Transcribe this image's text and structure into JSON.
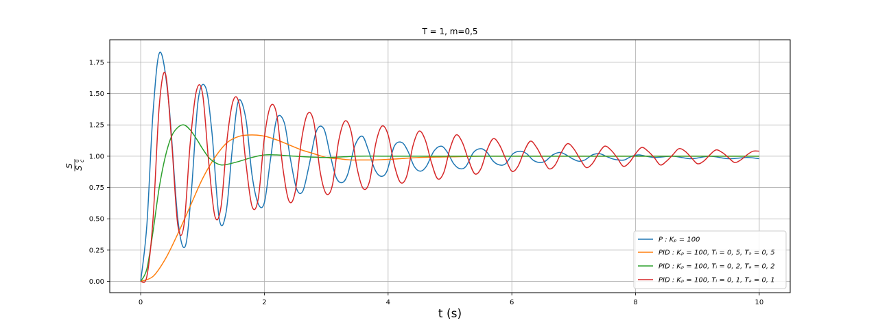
{
  "chart_data": {
    "type": "line",
    "title": "T = 1, m=0,5",
    "xlabel": "t (s)",
    "ylabel_num": "S",
    "ylabel_den": "S",
    "ylabel_den_sub": "c",
    "ylabel_den_sup": "0",
    "xlim": [
      -0.5,
      10.5
    ],
    "ylim": [
      -0.09,
      1.93
    ],
    "xticks": [
      0,
      2,
      4,
      6,
      8,
      10
    ],
    "xtick_labels": [
      "0",
      "2",
      "4",
      "6",
      "8",
      "10"
    ],
    "yticks": [
      0.0,
      0.25,
      0.5,
      0.75,
      1.0,
      1.25,
      1.5,
      1.75
    ],
    "ytick_labels": [
      "0.00",
      "0.25",
      "0.50",
      "0.75",
      "1.00",
      "1.25",
      "1.50",
      "1.75"
    ],
    "grid": true,
    "legend_position": "bottom-right",
    "series": [
      {
        "name": "P: K_p = 100",
        "legend": "P : Kₚ = 100",
        "color": "#1f77b4",
        "x": [
          0,
          0.1,
          0.2,
          0.31,
          0.45,
          0.6,
          0.72,
          0.82,
          0.93,
          1.05,
          1.15,
          1.27,
          1.38,
          1.48,
          1.58,
          1.7,
          1.8,
          1.9,
          2.0,
          2.1,
          2.2,
          2.32,
          2.42,
          2.52,
          2.62,
          2.72,
          2.84,
          2.96,
          3.06,
          3.16,
          3.26,
          3.35,
          3.46,
          3.58,
          3.68,
          3.78,
          3.88,
          3.98,
          4.1,
          4.22,
          4.32,
          4.42,
          4.52,
          4.62,
          4.74,
          4.86,
          4.96,
          5.06,
          5.16,
          5.26,
          5.38,
          5.5,
          5.6,
          5.7,
          5.8,
          5.9,
          6.02,
          6.14,
          6.24,
          6.34,
          6.44,
          6.54,
          6.66,
          6.78,
          6.88,
          6.98,
          7.08,
          7.18,
          7.3,
          7.42,
          7.52,
          7.62,
          7.72,
          7.82,
          7.94,
          8.06,
          8.3,
          8.6,
          8.9,
          9.2,
          9.5,
          9.8,
          10.0
        ],
        "y": [
          0,
          0.45,
          1.35,
          1.83,
          1.45,
          0.5,
          0.28,
          0.72,
          1.45,
          1.55,
          1.2,
          0.5,
          0.55,
          1.05,
          1.44,
          1.3,
          0.85,
          0.62,
          0.63,
          0.98,
          1.3,
          1.27,
          0.98,
          0.74,
          0.72,
          0.92,
          1.2,
          1.22,
          1.02,
          0.83,
          0.79,
          0.86,
          1.08,
          1.16,
          1.05,
          0.9,
          0.84,
          0.88,
          1.08,
          1.11,
          1.04,
          0.92,
          0.88,
          0.92,
          1.04,
          1.08,
          1.03,
          0.94,
          0.9,
          0.92,
          1.03,
          1.06,
          1.03,
          0.96,
          0.93,
          0.94,
          1.02,
          1.04,
          1.02,
          0.97,
          0.95,
          0.96,
          1.01,
          1.03,
          1.01,
          0.98,
          0.96,
          0.97,
          1.01,
          1.02,
          1.0,
          0.98,
          0.97,
          0.97,
          1.0,
          1.01,
          0.99,
          1.0,
          0.98,
          1.0,
          0.98,
          0.99,
          0.98
        ]
      },
      {
        "name": "PID: K_p = 100, T_i = 0,5, T_d = 0,5",
        "legend": "PID : Kₚ = 100,  Tᵢ = 0, 5,  Tₔ = 0, 5",
        "color": "#ff7f0e",
        "x": [
          0,
          0.2,
          0.4,
          0.6,
          0.8,
          1.0,
          1.2,
          1.4,
          1.6,
          1.8,
          2.0,
          2.2,
          2.4,
          2.6,
          2.8,
          3.0,
          3.2,
          3.4,
          3.6,
          3.8,
          4.0,
          4.2,
          4.5,
          5.0,
          5.5,
          6.0,
          7.0,
          8.0,
          9.0,
          10.0
        ],
        "y": [
          0,
          0.04,
          0.18,
          0.38,
          0.6,
          0.82,
          0.99,
          1.11,
          1.16,
          1.17,
          1.16,
          1.13,
          1.09,
          1.05,
          1.02,
          0.99,
          0.98,
          0.97,
          0.97,
          0.97,
          0.975,
          0.98,
          0.99,
          0.995,
          1.0,
          1.0,
          1.0,
          1.0,
          1.0,
          1.0
        ]
      },
      {
        "name": "PID: K_p = 100, T_i = 0,2, T_d = 0,2",
        "legend": "PID : Kₚ = 100,  Tᵢ = 0, 2,  Tₔ = 0, 2",
        "color": "#2ca02c",
        "x": [
          0,
          0.1,
          0.2,
          0.3,
          0.4,
          0.5,
          0.6,
          0.7,
          0.8,
          0.9,
          1.0,
          1.1,
          1.2,
          1.3,
          1.4,
          1.6,
          1.8,
          2.0,
          2.2,
          2.5,
          3.0,
          3.5,
          4.0,
          5.0,
          6.0,
          7.0,
          8.0,
          9.0,
          10.0
        ],
        "y": [
          0,
          0.1,
          0.4,
          0.75,
          1.0,
          1.16,
          1.23,
          1.25,
          1.21,
          1.14,
          1.06,
          0.99,
          0.95,
          0.93,
          0.935,
          0.96,
          0.99,
          1.01,
          1.01,
          1.0,
          0.99,
          1.0,
          1.0,
          1.0,
          1.0,
          1.0,
          1.0,
          1.0,
          1.0
        ]
      },
      {
        "name": "PID: K_p = 100, T_i = 0,1, T_d = 0,1",
        "legend": "PID : Kₚ = 100,  Tᵢ = 0, 1,  Tₔ = 0, 1",
        "color": "#d62728",
        "x": [
          0,
          0.1,
          0.2,
          0.3,
          0.4,
          0.5,
          0.6,
          0.7,
          0.8,
          0.9,
          1.0,
          1.1,
          1.2,
          1.3,
          1.4,
          1.5,
          1.6,
          1.7,
          1.8,
          1.9,
          2.0,
          2.1,
          2.2,
          2.3,
          2.4,
          2.5,
          2.6,
          2.7,
          2.8,
          2.9,
          3.0,
          3.1,
          3.2,
          3.3,
          3.4,
          3.5,
          3.6,
          3.7,
          3.8,
          3.9,
          4.0,
          4.1,
          4.2,
          4.3,
          4.4,
          4.5,
          4.6,
          4.7,
          4.8,
          4.9,
          5.0,
          5.1,
          5.2,
          5.3,
          5.4,
          5.5,
          5.6,
          5.7,
          5.8,
          5.9,
          6.0,
          6.1,
          6.2,
          6.3,
          6.4,
          6.5,
          6.6,
          6.7,
          6.8,
          6.9,
          7.0,
          7.1,
          7.2,
          7.3,
          7.4,
          7.5,
          7.6,
          7.7,
          7.8,
          7.9,
          8.0,
          8.1,
          8.2,
          8.3,
          8.4,
          8.5,
          8.6,
          8.7,
          8.8,
          8.9,
          9.0,
          9.1,
          9.2,
          9.3,
          9.4,
          9.5,
          9.6,
          9.7,
          9.8,
          9.9,
          10.0
        ],
        "y": [
          0,
          0.04,
          0.5,
          1.4,
          1.66,
          1.12,
          0.45,
          0.45,
          1.1,
          1.52,
          1.5,
          0.95,
          0.52,
          0.6,
          1.15,
          1.45,
          1.4,
          0.95,
          0.6,
          0.66,
          1.15,
          1.4,
          1.33,
          0.9,
          0.64,
          0.72,
          1.13,
          1.34,
          1.27,
          0.88,
          0.7,
          0.77,
          1.12,
          1.28,
          1.2,
          0.9,
          0.74,
          0.8,
          1.1,
          1.24,
          1.17,
          0.93,
          0.79,
          0.84,
          1.08,
          1.2,
          1.13,
          0.95,
          0.82,
          0.87,
          1.06,
          1.17,
          1.11,
          0.97,
          0.86,
          0.9,
          1.05,
          1.14,
          1.09,
          0.98,
          0.88,
          0.92,
          1.04,
          1.12,
          1.07,
          0.98,
          0.9,
          0.93,
          1.03,
          1.1,
          1.06,
          0.98,
          0.91,
          0.94,
          1.02,
          1.08,
          1.05,
          0.99,
          0.92,
          0.95,
          1.02,
          1.07,
          1.04,
          0.99,
          0.93,
          0.96,
          1.01,
          1.06,
          1.04,
          0.99,
          0.94,
          0.96,
          1.01,
          1.05,
          1.03,
          0.99,
          0.95,
          0.97,
          1.01,
          1.04,
          1.04
        ]
      }
    ]
  }
}
